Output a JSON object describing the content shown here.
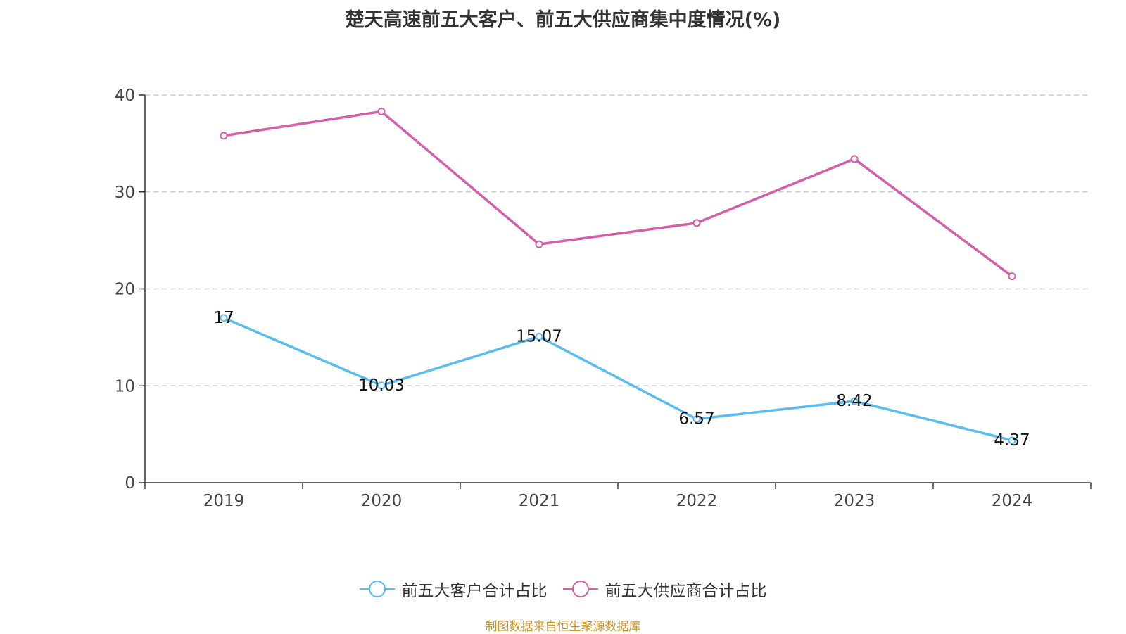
{
  "chart_data": {
    "type": "line",
    "title": "楚天高速前五大客户、前五大供应商集中度情况(%)",
    "categories": [
      "2019",
      "2020",
      "2021",
      "2022",
      "2023",
      "2024"
    ],
    "ylim": [
      0,
      40
    ],
    "y_ticks": [
      "0",
      "10",
      "20",
      "30",
      "40"
    ],
    "grid": true,
    "legend_position": "bottom",
    "series": [
      {
        "name": "前五大客户合计占比",
        "color": "#5bbcf0",
        "values": [
          17,
          10.03,
          15.07,
          6.57,
          8.42,
          4.37
        ],
        "labels": [
          "17",
          "10.03",
          "15.07",
          "6.57",
          "8.42",
          "4.37"
        ]
      },
      {
        "name": "前五大供应商合计占比",
        "color": "#d35fa8",
        "values": [
          35.8,
          38.3,
          24.6,
          26.8,
          33.4,
          21.3
        ]
      }
    ]
  },
  "footer": {
    "source": "制图数据来自恒生聚源数据库"
  }
}
